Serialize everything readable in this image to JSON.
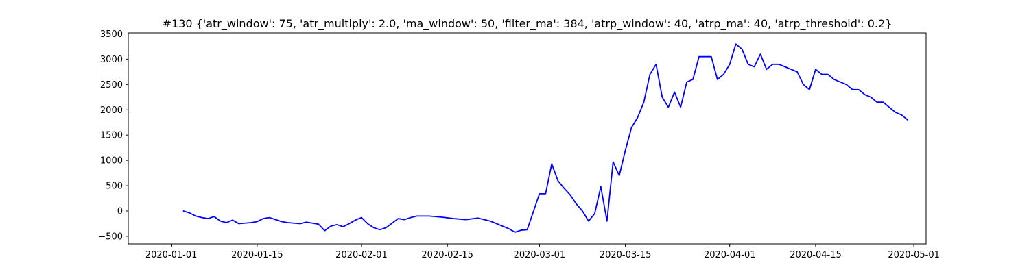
{
  "chart_data": {
    "type": "line",
    "title": "#130 {'atr_window': 75, 'atr_multiply': 2.0, 'ma_window': 50, 'filter_ma': 384, 'atrp_window': 40, 'atrp_ma': 40, 'atrp_threshold': 0.2}",
    "xlabel": "",
    "ylabel": "",
    "x_type": "date",
    "xlim": [
      "2019-12-25",
      "2020-05-03"
    ],
    "ylim": [
      -650,
      3520
    ],
    "grid": false,
    "legend": "none",
    "x_ticks": [
      "2020-01-01",
      "2020-01-15",
      "2020-02-01",
      "2020-02-15",
      "2020-03-01",
      "2020-03-15",
      "2020-04-01",
      "2020-04-15",
      "2020-05-01"
    ],
    "y_ticks": [
      -500,
      0,
      500,
      1000,
      1500,
      2000,
      2500,
      3000,
      3500
    ],
    "series": [
      {
        "color": "#0000ff",
        "x": [
          "2020-01-03",
          "2020-01-04",
          "2020-01-05",
          "2020-01-06",
          "2020-01-07",
          "2020-01-08",
          "2020-01-09",
          "2020-01-10",
          "2020-01-11",
          "2020-01-12",
          "2020-01-14",
          "2020-01-15",
          "2020-01-16",
          "2020-01-17",
          "2020-01-19",
          "2020-01-20",
          "2020-01-22",
          "2020-01-23",
          "2020-01-25",
          "2020-01-26",
          "2020-01-27",
          "2020-01-28",
          "2020-01-29",
          "2020-01-30",
          "2020-01-31",
          "2020-02-01",
          "2020-02-02",
          "2020-02-03",
          "2020-02-04",
          "2020-02-05",
          "2020-02-07",
          "2020-02-08",
          "2020-02-09",
          "2020-02-10",
          "2020-02-12",
          "2020-02-14",
          "2020-02-16",
          "2020-02-18",
          "2020-02-20",
          "2020-02-22",
          "2020-02-24",
          "2020-02-25",
          "2020-02-26",
          "2020-02-27",
          "2020-02-28",
          "2020-03-01",
          "2020-03-02",
          "2020-03-03",
          "2020-03-04",
          "2020-03-05",
          "2020-03-06",
          "2020-03-07",
          "2020-03-08",
          "2020-03-09",
          "2020-03-10",
          "2020-03-11",
          "2020-03-12",
          "2020-03-13",
          "2020-03-14",
          "2020-03-15",
          "2020-03-16",
          "2020-03-17",
          "2020-03-18",
          "2020-03-19",
          "2020-03-20",
          "2020-03-21",
          "2020-03-22",
          "2020-03-23",
          "2020-03-24",
          "2020-03-25",
          "2020-03-26",
          "2020-03-27",
          "2020-03-28",
          "2020-03-29",
          "2020-03-30",
          "2020-03-31",
          "2020-04-01",
          "2020-04-02",
          "2020-04-03",
          "2020-04-04",
          "2020-04-05",
          "2020-04-06",
          "2020-04-07",
          "2020-04-08",
          "2020-04-09",
          "2020-04-10",
          "2020-04-11",
          "2020-04-12",
          "2020-04-13",
          "2020-04-14",
          "2020-04-15",
          "2020-04-16",
          "2020-04-17",
          "2020-04-18",
          "2020-04-19",
          "2020-04-20",
          "2020-04-21",
          "2020-04-22",
          "2020-04-23",
          "2020-04-24",
          "2020-04-25",
          "2020-04-26",
          "2020-04-27",
          "2020-04-28",
          "2020-04-29",
          "2020-04-30"
        ],
        "values": [
          0,
          -40,
          -100,
          -130,
          -150,
          -110,
          -200,
          -230,
          -180,
          -250,
          -230,
          -210,
          -150,
          -130,
          -210,
          -230,
          -250,
          -220,
          -260,
          -390,
          -300,
          -270,
          -310,
          -250,
          -180,
          -130,
          -250,
          -330,
          -370,
          -330,
          -150,
          -170,
          -130,
          -100,
          -100,
          -120,
          -150,
          -170,
          -140,
          -200,
          -300,
          -350,
          -420,
          -380,
          -370,
          340,
          340,
          930,
          600,
          450,
          320,
          140,
          0,
          -200,
          -50,
          480,
          -200,
          970,
          700,
          1200,
          1650,
          1850,
          2150,
          2700,
          2900,
          2250,
          2050,
          2350,
          2050,
          2550,
          2600,
          3050,
          3050,
          3050,
          2600,
          2700,
          2900,
          3300,
          3200,
          2900,
          2850,
          3100,
          2800,
          2900,
          2900,
          2850,
          2800,
          2750,
          2500,
          2400,
          2800,
          2700,
          2700,
          2600,
          2550,
          2500,
          2400,
          2400,
          2300,
          2250,
          2150,
          2150,
          2050,
          1950,
          1900,
          1800
        ]
      }
    ]
  }
}
